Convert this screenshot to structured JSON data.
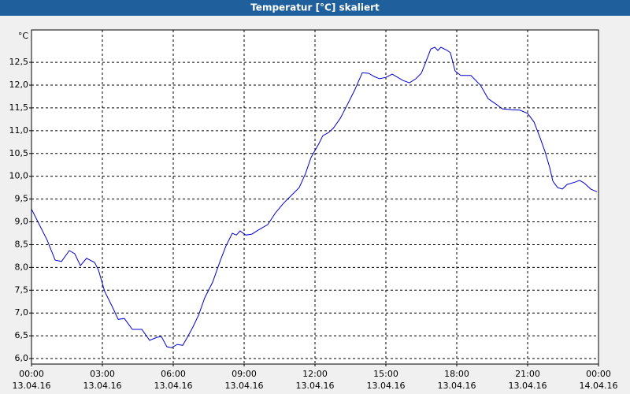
{
  "chart_data": {
    "type": "line",
    "title": "Temperatur [°C] skaliert",
    "ylabel": "°C",
    "x": [
      0,
      0.33,
      0.67,
      1,
      1.27,
      1.6,
      1.83,
      2.07,
      2.33,
      2.67,
      2.83,
      3.1,
      3.4,
      3.67,
      3.93,
      4.27,
      4.67,
      5,
      5.33,
      5.5,
      5.73,
      5.93,
      6.17,
      6.4,
      6.6,
      6.83,
      7.07,
      7.33,
      7.67,
      8,
      8.23,
      8.5,
      8.67,
      8.83,
      9.07,
      9.33,
      9.6,
      10,
      10.33,
      10.67,
      11,
      11.33,
      11.6,
      11.83,
      12.17,
      12.33,
      12.57,
      12.77,
      13.07,
      13.33,
      13.67,
      14,
      14.27,
      14.5,
      14.73,
      15,
      15.27,
      15.5,
      15.73,
      16,
      16.27,
      16.5,
      16.67,
      16.9,
      17.07,
      17.2,
      17.33,
      17.6,
      17.73,
      17.93,
      18.17,
      18.6,
      19,
      19.33,
      19.67,
      19.93,
      20.33,
      20.67,
      21,
      21.27,
      21.53,
      21.73,
      21.93,
      22.07,
      22.27,
      22.47,
      22.67,
      23,
      23.2,
      23.4,
      23.67,
      23.93
    ],
    "values": [
      9.28,
      8.94,
      8.59,
      8.16,
      8.13,
      8.37,
      8.3,
      8.04,
      8.2,
      8.11,
      7.95,
      7.47,
      7.16,
      6.86,
      6.88,
      6.64,
      6.64,
      6.4,
      6.47,
      6.48,
      6.26,
      6.24,
      6.31,
      6.29,
      6.47,
      6.69,
      6.95,
      7.33,
      7.68,
      8.16,
      8.47,
      8.75,
      8.71,
      8.8,
      8.71,
      8.73,
      8.82,
      8.94,
      9.2,
      9.41,
      9.58,
      9.75,
      10.06,
      10.41,
      10.72,
      10.89,
      10.96,
      11.05,
      11.27,
      11.53,
      11.88,
      12.27,
      12.26,
      12.19,
      12.14,
      12.17,
      12.24,
      12.17,
      12.1,
      12.05,
      12.14,
      12.26,
      12.48,
      12.79,
      12.83,
      12.76,
      12.83,
      12.76,
      12.71,
      12.31,
      12.21,
      12.21,
      12.0,
      11.7,
      11.58,
      11.48,
      11.46,
      11.45,
      11.38,
      11.19,
      10.84,
      10.55,
      10.2,
      9.89,
      9.75,
      9.72,
      9.82,
      9.87,
      9.91,
      9.85,
      9.72,
      9.66
    ],
    "color": "#0000cc",
    "xlim": [
      0,
      24
    ],
    "xticks": [
      {
        "value": 0,
        "label": "00:00"
      },
      {
        "value": 3,
        "label": "03:00"
      },
      {
        "value": 6,
        "label": "06:00"
      },
      {
        "value": 9,
        "label": "09:00"
      },
      {
        "value": 12,
        "label": "12:00"
      },
      {
        "value": 15,
        "label": "15:00"
      },
      {
        "value": 18,
        "label": "18:00"
      },
      {
        "value": 21,
        "label": "21:00"
      },
      {
        "value": 24,
        "label": "00:00"
      }
    ],
    "xtick_dates": [
      "13.04.16",
      "13.04.16",
      "13.04.16",
      "13.04.16",
      "13.04.16",
      "13.04.16",
      "13.04.16",
      "13.04.16",
      "14.04.16"
    ],
    "ylim": [
      5.88,
      13.21
    ],
    "yticks": [
      {
        "value": 6,
        "label": "6,0"
      },
      {
        "value": 6.5,
        "label": "6,5"
      },
      {
        "value": 7,
        "label": "7,0"
      },
      {
        "value": 7.5,
        "label": "7,5"
      },
      {
        "value": 8,
        "label": "8,0"
      },
      {
        "value": 8.5,
        "label": "8,5"
      },
      {
        "value": 9,
        "label": "9,0"
      },
      {
        "value": 9.5,
        "label": "9,5"
      },
      {
        "value": 10,
        "label": "10,0"
      },
      {
        "value": 10.5,
        "label": "10,5"
      },
      {
        "value": 11,
        "label": "11,0"
      },
      {
        "value": 11.5,
        "label": "11,5"
      },
      {
        "value": 12,
        "label": "12,0"
      },
      {
        "value": 12.5,
        "label": "12,5"
      }
    ],
    "grid": true
  }
}
